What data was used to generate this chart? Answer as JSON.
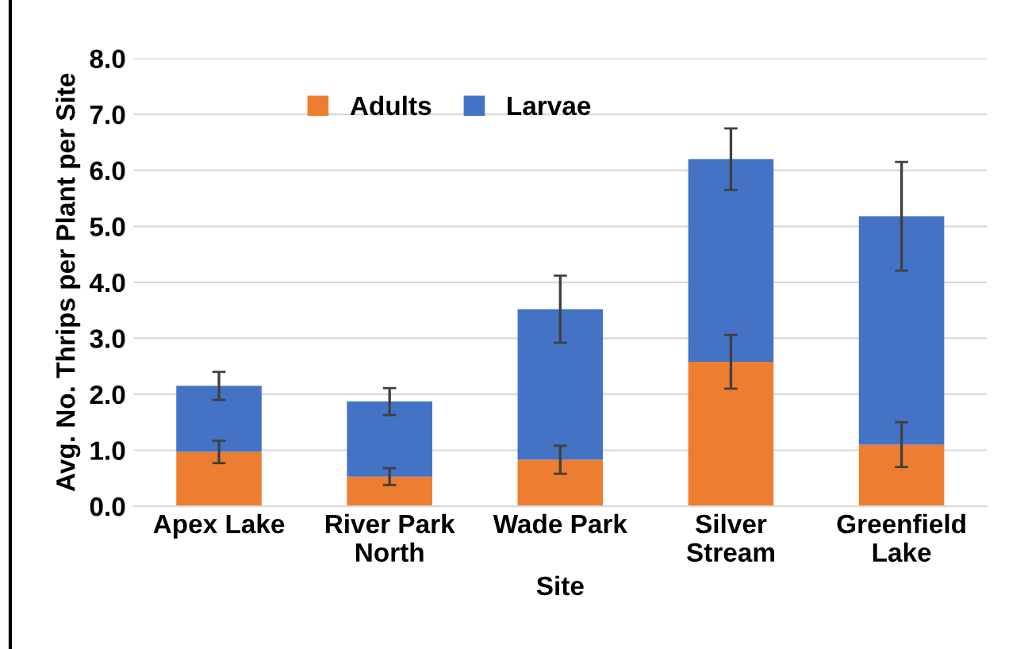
{
  "chart_data": {
    "type": "bar",
    "stacked": true,
    "xlabel": "Site",
    "ylabel": "Avg. No. Thrips per Plant per Site",
    "categories": [
      "Apex Lake",
      "River Park\nNorth",
      "Wade Park",
      "Silver\nStream",
      "Greenfield\nLake"
    ],
    "series": [
      {
        "name": "Adults",
        "color": "#ed7d31",
        "values": [
          0.97,
          0.53,
          0.83,
          2.58,
          1.1
        ],
        "errors": [
          0.2,
          0.15,
          0.25,
          0.48,
          0.4
        ]
      },
      {
        "name": "Larvae",
        "color": "#4472c4",
        "values": [
          1.18,
          1.34,
          2.69,
          3.62,
          4.08
        ],
        "errors": [
          0.25,
          0.24,
          0.6,
          0.55,
          0.97
        ]
      }
    ],
    "ylim": [
      0,
      8
    ],
    "yticks": [
      {
        "value": 0,
        "label": "0.0"
      },
      {
        "value": 1,
        "label": "1.0"
      },
      {
        "value": 2,
        "label": "2.0"
      },
      {
        "value": 3,
        "label": "3.0"
      },
      {
        "value": 4,
        "label": "4.0"
      },
      {
        "value": 5,
        "label": "5.0"
      },
      {
        "value": 6,
        "label": "6.0"
      },
      {
        "value": 7,
        "label": "7.0"
      },
      {
        "value": 8,
        "label": "8.0"
      }
    ],
    "grid": "y",
    "legend": "top"
  }
}
